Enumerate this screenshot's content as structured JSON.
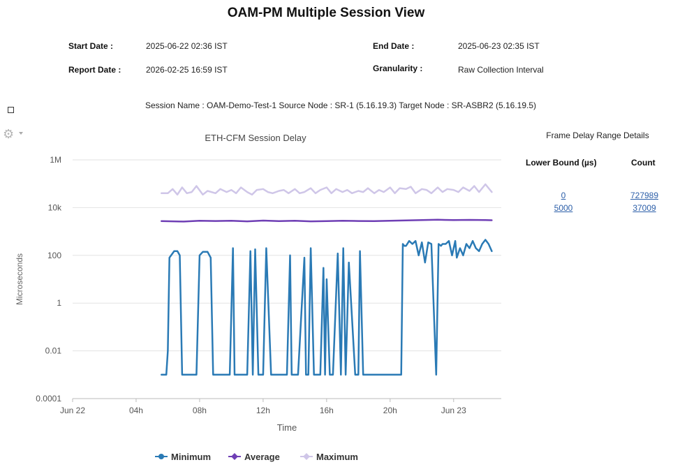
{
  "page": {
    "title": "OAM-PM Multiple Session View",
    "start_date_label": "Start Date :",
    "start_date": "2025-06-22 02:36 IST",
    "end_date_label": "End Date :",
    "end_date": "2025-06-23 02:35 IST",
    "report_date_label": "Report Date :",
    "report_date": "2026-02-25 16:59 IST",
    "granularity_label": "Granularity :",
    "granularity": "Raw Collection Interval",
    "session_line": "Session Name : OAM-Demo-Test-1  Source Node : SR-1 (5.16.19.3)  Target Node : SR-ASBR2 (5.16.19.5)"
  },
  "icons": {
    "gear": "gear-icon",
    "menu_caret": "chevron-down-icon",
    "checkbox": "checkbox-icon"
  },
  "colors": {
    "minimum": "#2a7ab5",
    "average": "#6f3fb5",
    "maximum": "#cfc6e8",
    "grid": "#e2e2e2",
    "link": "#2b5ea8"
  },
  "frame_delay": {
    "title": "Frame Delay Range Details",
    "col_lower": "Lower Bound (µs)",
    "col_count": "Count",
    "rows": [
      {
        "lower": "0",
        "count": "727989"
      },
      {
        "lower": "5000",
        "count": "37009"
      }
    ]
  },
  "chart_data": {
    "type": "line",
    "title": "ETH-CFM Session Delay",
    "xlabel": "Time",
    "ylabel": "Microseconds",
    "y_scale": "log",
    "ylim": [
      0.0001,
      1000000
    ],
    "y_ticks": [
      {
        "v": 1000000,
        "label": "1M"
      },
      {
        "v": 10000,
        "label": "10k"
      },
      {
        "v": 100,
        "label": "100"
      },
      {
        "v": 1,
        "label": "1"
      },
      {
        "v": 0.01,
        "label": "0.01"
      },
      {
        "v": 0.0001,
        "label": "0.0001"
      }
    ],
    "x_unit": "hours from 2025-06-22 00:00 IST",
    "xlim": [
      0,
      27
    ],
    "x_ticks": [
      {
        "v": 0,
        "label": "Jun 22"
      },
      {
        "v": 4,
        "label": "04h"
      },
      {
        "v": 8,
        "label": "08h"
      },
      {
        "v": 12,
        "label": "12h"
      },
      {
        "v": 16,
        "label": "16h"
      },
      {
        "v": 20,
        "label": "20h"
      },
      {
        "v": 24,
        "label": "Jun 23"
      }
    ],
    "grid": "horizontal",
    "legend_position": "bottom",
    "series": [
      {
        "name": "Minimum",
        "x": [
          5.6,
          5.9,
          6.0,
          6.1,
          6.4,
          6.6,
          6.75,
          6.9,
          7.8,
          8.0,
          8.2,
          8.5,
          8.7,
          8.85,
          9.0,
          9.9,
          10.1,
          10.2,
          10.4,
          10.6,
          11.0,
          11.2,
          11.35,
          11.5,
          11.7,
          11.9,
          12.0,
          12.2,
          12.5,
          13.5,
          13.7,
          13.8,
          14.0,
          14.2,
          14.6,
          14.7,
          14.85,
          15.0,
          15.2,
          15.6,
          15.8,
          15.9,
          16.0,
          16.2,
          16.4,
          16.7,
          16.9,
          17.05,
          17.2,
          17.4,
          17.8,
          18.0,
          18.1,
          18.3,
          18.5,
          20.7,
          20.8,
          20.9,
          21.0,
          21.2,
          21.4,
          21.6,
          21.8,
          22.0,
          22.2,
          22.4,
          22.6,
          22.9,
          23.05,
          23.2,
          23.3,
          23.5,
          23.7,
          23.9,
          24.1,
          24.2,
          24.4,
          24.6,
          24.8,
          25.0,
          25.2,
          25.4,
          25.6,
          25.8,
          26.0,
          26.2,
          26.4
        ],
        "y": [
          0.001,
          0.001,
          0.01,
          80,
          150,
          150,
          100,
          0.001,
          0.001,
          100,
          140,
          140,
          80,
          0.001,
          0.001,
          0.001,
          200,
          0.001,
          0.001,
          0.001,
          0.001,
          150,
          0.001,
          180,
          0.001,
          0.001,
          0.001,
          200,
          0.001,
          0.001,
          100,
          0.001,
          0.001,
          0.001,
          80,
          0.001,
          0.001,
          200,
          0.001,
          0.001,
          30,
          0.001,
          10,
          0.001,
          0.001,
          120,
          0.001,
          200,
          0.001,
          50,
          0.001,
          0.001,
          150,
          0.001,
          0.001,
          0.001,
          300,
          250,
          250,
          400,
          300,
          400,
          100,
          350,
          50,
          350,
          300,
          0.001,
          300,
          250,
          300,
          300,
          400,
          100,
          400,
          80,
          200,
          100,
          300,
          200,
          400,
          200,
          150,
          300,
          450,
          300,
          150
        ]
      },
      {
        "name": "Average",
        "x": [
          5.6,
          7,
          8,
          9,
          10,
          11,
          12,
          13,
          14,
          15,
          16,
          17,
          18,
          19,
          20,
          21,
          22,
          23,
          24,
          25,
          26,
          26.4
        ],
        "y": [
          2700,
          2600,
          2800,
          2750,
          2800,
          2650,
          2850,
          2700,
          2800,
          2650,
          2700,
          2800,
          2750,
          2700,
          2800,
          2900,
          3000,
          3100,
          3000,
          3050,
          3000,
          2950
        ]
      },
      {
        "name": "Maximum",
        "x": [
          5.6,
          6.0,
          6.3,
          6.6,
          6.9,
          7.2,
          7.5,
          7.8,
          8.2,
          8.5,
          9.0,
          9.3,
          9.7,
          10.0,
          10.3,
          10.6,
          11.0,
          11.3,
          11.6,
          12.0,
          12.3,
          12.6,
          13.0,
          13.3,
          13.6,
          14.0,
          14.3,
          14.6,
          15.0,
          15.3,
          15.6,
          16.0,
          16.3,
          16.6,
          17.0,
          17.3,
          17.6,
          18.0,
          18.3,
          18.6,
          19.0,
          19.3,
          19.6,
          20.0,
          20.3,
          20.6,
          21.0,
          21.3,
          21.6,
          22.0,
          22.3,
          22.6,
          23.0,
          23.3,
          23.6,
          24.0,
          24.3,
          24.6,
          25.0,
          25.3,
          25.6,
          26.0,
          26.4
        ],
        "y": [
          40000,
          40000,
          60000,
          35000,
          70000,
          40000,
          45000,
          80000,
          35000,
          50000,
          40000,
          60000,
          45000,
          55000,
          40000,
          70000,
          45000,
          35000,
          55000,
          60000,
          45000,
          40000,
          50000,
          55000,
          40000,
          60000,
          40000,
          45000,
          65000,
          40000,
          55000,
          70000,
          40000,
          60000,
          45000,
          55000,
          40000,
          50000,
          45000,
          65000,
          40000,
          55000,
          45000,
          70000,
          40000,
          65000,
          60000,
          75000,
          40000,
          60000,
          55000,
          40000,
          70000,
          45000,
          60000,
          55000,
          45000,
          70000,
          50000,
          80000,
          45000,
          95000,
          45000
        ]
      }
    ]
  }
}
